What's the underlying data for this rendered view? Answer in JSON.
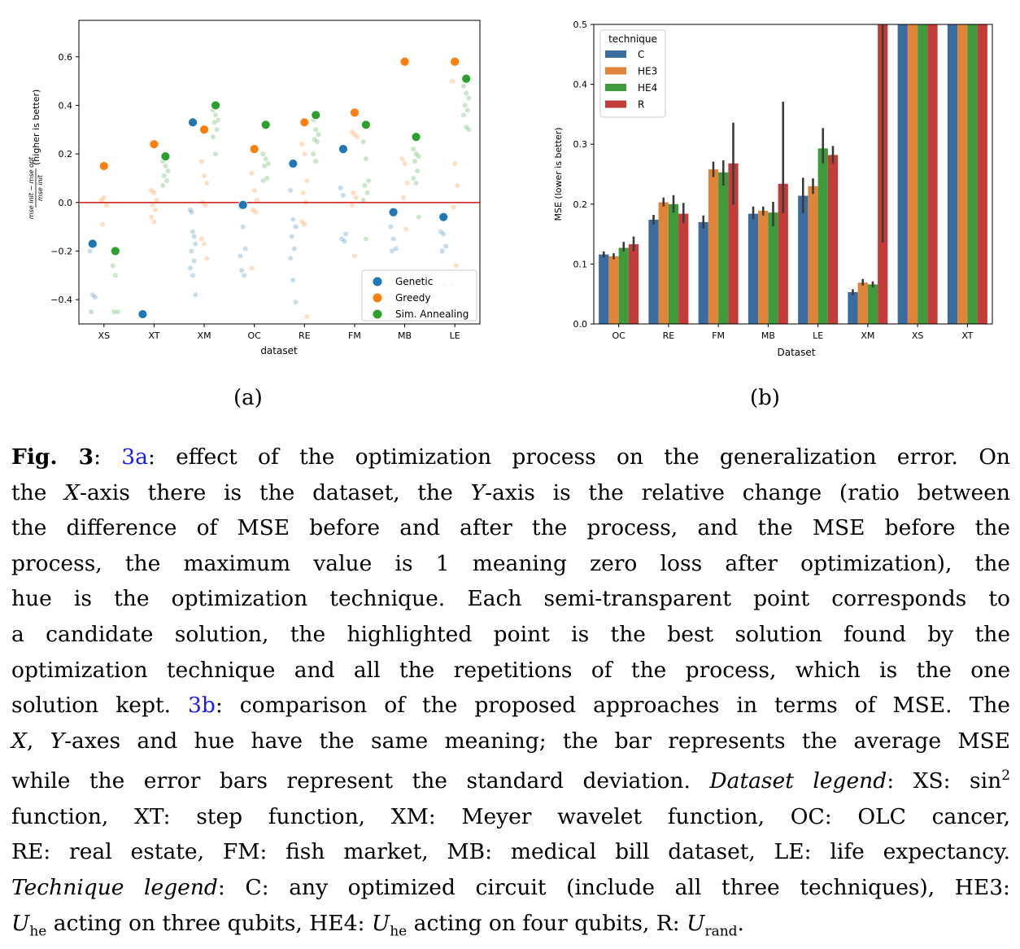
{
  "chart_data": [
    {
      "type": "scatter",
      "title": "",
      "xlabel": "dataset",
      "ylabel": "mse init − mse opt / mse init (higher is better)",
      "ylabel_fraction": {
        "numerator": "mse init − mse opt",
        "denominator": "mse init",
        "suffix": "(higher is better)"
      },
      "categories": [
        "XS",
        "XT",
        "XM",
        "OC",
        "RE",
        "FM",
        "MB",
        "LE"
      ],
      "ylim": [
        -0.5,
        0.75
      ],
      "yticks": [
        -0.4,
        -0.2,
        0.0,
        0.2,
        0.4,
        0.6
      ],
      "ytick_labels": [
        "−0.4",
        "−0.2",
        "0.0",
        "0.2",
        "0.4",
        "0.6"
      ],
      "reference_line": {
        "y": 0.0,
        "color": "#d62728"
      },
      "legend_position": "lower-right",
      "series": [
        {
          "name": "Genetic",
          "color": "#1f77b4",
          "best": [
            -0.17,
            -0.46,
            0.33,
            -0.01,
            0.16,
            0.22,
            -0.04,
            -0.06
          ],
          "candidates": [
            [
              -0.2,
              -0.38,
              -0.39,
              -0.45
            ],
            [],
            [
              -0.03,
              -0.12,
              -0.17,
              -0.2,
              -0.24,
              -0.27,
              -0.3,
              -0.38,
              -0.04,
              -0.14
            ],
            [
              -0.02,
              -0.1,
              -0.19,
              -0.28,
              -0.3,
              -0.22
            ],
            [
              0.05,
              -0.07,
              -0.1,
              -0.14,
              -0.19,
              -0.23,
              -0.32,
              -0.41
            ],
            [
              0.06,
              0.03,
              -0.13,
              -0.15,
              -0.16
            ],
            [
              -0.1,
              -0.15,
              -0.19,
              -0.2
            ],
            [
              -0.12,
              -0.13,
              -0.18,
              -0.2,
              -0.34
            ]
          ]
        },
        {
          "name": "Greedy",
          "color": "#ff7f0e",
          "best": [
            0.15,
            0.24,
            0.3,
            0.22,
            0.33,
            0.37,
            0.58,
            0.58
          ],
          "candidates": [
            [
              0.01,
              0.02,
              -0.01,
              -0.09
            ],
            [
              0.05,
              0.04,
              0.01,
              -0.01,
              -0.03,
              -0.06,
              -0.08
            ],
            [
              0.17,
              0.11,
              0.08,
              0.0,
              -0.01,
              -0.15,
              -0.17,
              -0.23
            ],
            [
              0.12,
              0.05,
              0.01,
              -0.03,
              -0.04,
              -0.27
            ],
            [
              0.24,
              0.2,
              0.09,
              0.04,
              0.0,
              -0.08,
              -0.09,
              -0.47
            ],
            [
              0.29,
              0.28,
              0.27,
              0.04,
              0.02,
              -0.01,
              -0.22
            ],
            [
              0.18,
              0.16,
              0.08,
              0.02,
              -0.11
            ],
            [
              0.5,
              0.16,
              0.07,
              -0.02,
              -0.26,
              -0.34
            ]
          ]
        },
        {
          "name": "Sim. Annealing",
          "color": "#2ca02c",
          "best": [
            -0.2,
            0.19,
            0.4,
            0.32,
            0.36,
            0.32,
            0.27,
            0.51
          ],
          "candidates": [
            [
              -0.26,
              -0.3,
              -0.45,
              -0.45
            ],
            [
              0.17,
              0.15,
              0.13,
              0.11,
              0.09,
              0.07
            ],
            [
              0.38,
              0.36,
              0.34,
              0.33,
              0.3,
              0.27,
              0.2
            ],
            [
              0.2,
              0.18,
              0.16,
              0.15,
              0.1,
              0.09
            ],
            [
              0.34,
              0.3,
              0.28,
              0.26,
              0.25,
              0.2,
              0.17
            ],
            [
              0.25,
              0.18,
              0.09,
              0.07,
              0.04,
              0.01,
              -0.15
            ],
            [
              0.22,
              0.2,
              0.19,
              0.17,
              0.13,
              0.1,
              0.08,
              -0.06
            ],
            [
              0.48,
              0.45,
              0.43,
              0.4,
              0.38,
              0.36,
              0.31,
              0.3
            ]
          ]
        }
      ]
    },
    {
      "type": "bar",
      "title": "",
      "xlabel": "Dataset",
      "ylabel": "MSE (lower is better)",
      "categories": [
        "OC",
        "RE",
        "FM",
        "MB",
        "LE",
        "XM",
        "XS",
        "XT"
      ],
      "ylim": [
        0.0,
        0.5
      ],
      "yticks": [
        0.0,
        0.1,
        0.2,
        0.3,
        0.4,
        0.5
      ],
      "ytick_labels": [
        "0.0",
        "0.1",
        "0.2",
        "0.3",
        "0.4",
        "0.5"
      ],
      "legend_title": "technique",
      "legend_position": "top-left",
      "series": [
        {
          "name": "C",
          "color": "#3a6c9f",
          "values": [
            0.116,
            0.174,
            0.17,
            0.184,
            0.214,
            0.053,
            0.5,
            0.5
          ],
          "err": [
            [
              0.111,
              0.121
            ],
            [
              0.166,
              0.182
            ],
            [
              0.159,
              0.181
            ],
            [
              0.175,
              0.196
            ],
            [
              0.185,
              0.244
            ],
            [
              0.048,
              0.058
            ],
            null,
            null
          ]
        },
        {
          "name": "HE3",
          "color": "#e0843a",
          "values": [
            0.113,
            0.203,
            0.258,
            0.189,
            0.23,
            0.069,
            0.5,
            0.5
          ],
          "err": [
            [
              0.108,
              0.118
            ],
            [
              0.196,
              0.211
            ],
            [
              0.245,
              0.271
            ],
            [
              0.181,
              0.196
            ],
            [
              0.217,
              0.243
            ],
            [
              0.064,
              0.075
            ],
            null,
            null
          ]
        },
        {
          "name": "HE4",
          "color": "#3f9a3b",
          "values": [
            0.127,
            0.2,
            0.253,
            0.186,
            0.293,
            0.066,
            0.5,
            0.5
          ],
          "err": [
            [
              0.121,
              0.137
            ],
            [
              0.186,
              0.215
            ],
            [
              0.231,
              0.273
            ],
            [
              0.163,
              0.204
            ],
            [
              0.268,
              0.327
            ],
            [
              0.061,
              0.071
            ],
            null,
            null
          ]
        },
        {
          "name": "R",
          "color": "#c43c3a",
          "values": [
            0.133,
            0.184,
            0.268,
            0.234,
            0.282,
            0.5,
            0.5,
            0.5
          ],
          "err": [
            [
              0.121,
              0.146
            ],
            [
              0.168,
              0.202
            ],
            [
              0.199,
              0.336
            ],
            [
              0.185,
              0.371
            ],
            [
              0.268,
              0.297
            ],
            [
              0.136,
              0.5
            ],
            null,
            null
          ]
        }
      ]
    }
  ],
  "subfigure_labels": {
    "a": "(a)",
    "b": "(b)"
  },
  "caption": {
    "fig_label": "Fig. 3",
    "ref_a": "3a",
    "ref_b": "3b",
    "l1_rest": ": effect of the optimization process on the generalization error. On",
    "l2_a": "the ",
    "l2_x": "X",
    "l2_b": "-axis there is the dataset, the ",
    "l2_y": "Y",
    "l2_c": "-axis is the relative change (ratio between",
    "l3": "the difference of MSE before and after the process, and the MSE before the",
    "l4": "process, the maximum value is 1 meaning zero loss after optimization), the",
    "l5": "hue is the optimization technique. Each semi-transparent point corresponds to",
    "l6": "a candidate solution, the highlighted point is the best solution found by the",
    "l7": "optimization technique and all the repetitions of the process, which is the one",
    "l8_a": "solution kept. ",
    "l8_b": ": comparison of the proposed approaches in terms of MSE. The",
    "l9_x": "X",
    "l9_a": ", ",
    "l9_y": "Y",
    "l9_b": "-axes and hue have the same meaning; the bar represents the average MSE",
    "l10_a": "while the error bars represent the standard deviation. ",
    "l10_it": "Dataset legend",
    "l10_b": ": XS: sin",
    "l10_sup": "2",
    "l11": "function, XT: step function, XM: Meyer wavelet function, OC: OLC cancer,",
    "l12": "RE: real estate, FM: fish market, MB: medical bill dataset, LE: life expectancy.",
    "l13_it": "Technique legend",
    "l13_b": ": C: any optimized circuit (include all three techniques), HE3:",
    "l14_u1": "U",
    "l14_sub1": "he",
    "l14_a": " acting on three qubits, HE4: ",
    "l14_u2": "U",
    "l14_sub2": "he",
    "l14_b": " acting on four qubits, R: ",
    "l14_u3": "U",
    "l14_sub3": "rand",
    "l14_end": "."
  }
}
